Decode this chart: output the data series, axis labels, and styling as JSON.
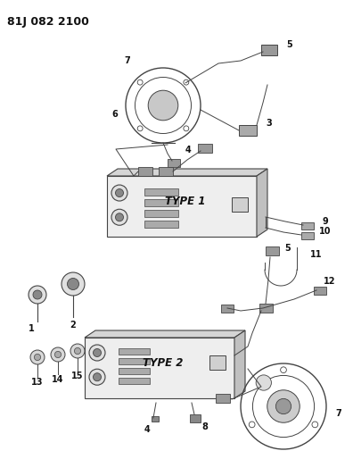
{
  "title": "81J 082 2100",
  "bg_color": "#ffffff",
  "line_color": "#444444",
  "text_color": "#111111",
  "title_fontsize": 9,
  "type1_label": "TYPE 1",
  "type2_label": "TYPE 2"
}
